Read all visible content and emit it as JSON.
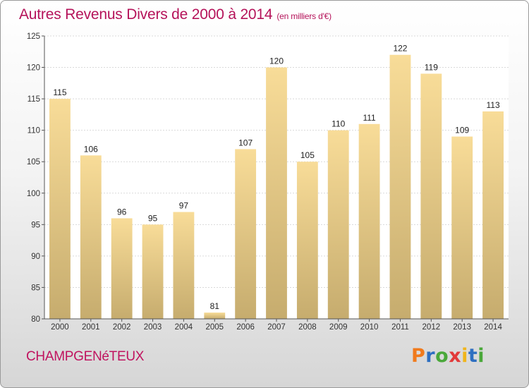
{
  "chart_data": {
    "type": "bar",
    "title": "Autres Revenus Divers de 2000 à 2014",
    "unit_note": "(en milliers d'€)",
    "categories": [
      "2000",
      "2001",
      "2002",
      "2003",
      "2004",
      "2005",
      "2006",
      "2007",
      "2008",
      "2009",
      "2010",
      "2011",
      "2012",
      "2013",
      "2014"
    ],
    "values": [
      115,
      106,
      96,
      95,
      97,
      81,
      107,
      120,
      105,
      110,
      111,
      122,
      119,
      109,
      113
    ],
    "ylim": [
      80,
      125
    ],
    "yticks": [
      80,
      85,
      90,
      95,
      100,
      105,
      110,
      115,
      120,
      125
    ],
    "grid": true,
    "bar_color_top": "#f8dc98",
    "bar_color_bottom": "#c6ac6e",
    "xlabel": "",
    "ylabel": ""
  },
  "footer": {
    "commune": "CHAMPGENéTEUX",
    "logo_letters": [
      "P",
      "r",
      "o",
      "x",
      "i",
      "t",
      "i"
    ],
    "logo_colors": [
      "#f07a1c",
      "#2e6fc1",
      "#4aa83a",
      "#e23a3a",
      "#f0b51c",
      "#2e6fc1",
      "#4aa83a"
    ]
  }
}
